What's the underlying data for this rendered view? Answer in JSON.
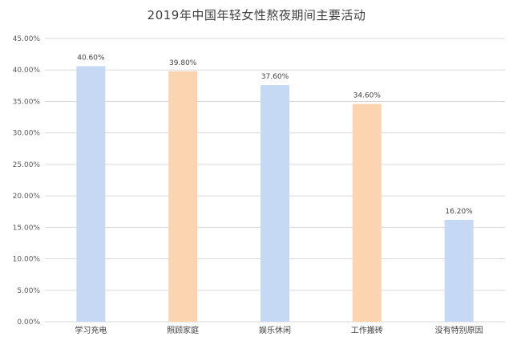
{
  "chart_data": {
    "type": "bar",
    "title": "2019年中国年轻女性熬夜期间主要活动",
    "xlabel": "",
    "ylabel": "",
    "categories": [
      "学习充电",
      "照顾家庭",
      "娱乐休闲",
      "工作搬砖",
      "没有特别原因"
    ],
    "values": [
      40.6,
      39.8,
      37.6,
      34.6,
      16.2
    ],
    "value_labels": [
      "40.60%",
      "39.80%",
      "37.60%",
      "34.60%",
      "16.20%"
    ],
    "bar_colors": [
      "#c5d9f5",
      "#fdd4b0",
      "#c5d9f5",
      "#fdd4b0",
      "#c5d9f5"
    ],
    "ylim": [
      0,
      45
    ],
    "yticks": [
      0,
      5,
      10,
      15,
      20,
      25,
      30,
      35,
      40,
      45
    ],
    "ytick_labels": [
      "0.00%",
      "5.00%",
      "10.00%",
      "15.00%",
      "20.00%",
      "25.00%",
      "30.00%",
      "35.00%",
      "40.00%",
      "45.00%"
    ],
    "grid": true,
    "grid_color": "#d9d9d9",
    "legend": "none"
  }
}
